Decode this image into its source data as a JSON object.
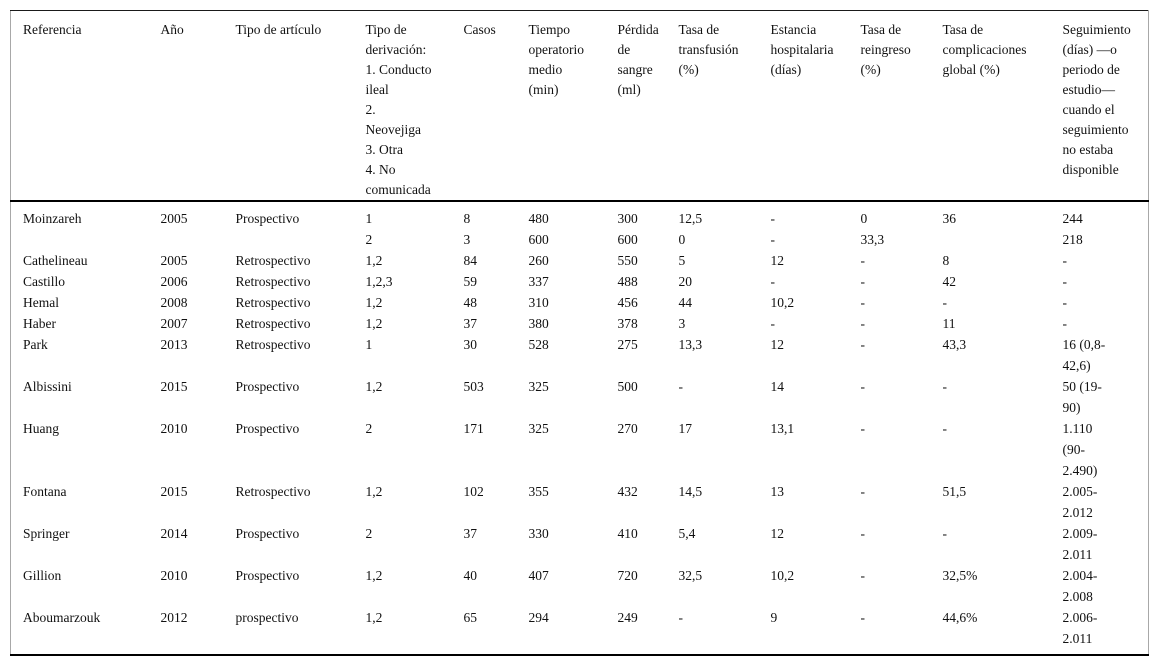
{
  "table": {
    "headers": [
      "Referencia",
      "Año",
      "Tipo de artículo",
      "Tipo de\nderivación:\n1. Conducto\nileal\n2.\nNeovejiga\n3. Otra\n4. No\ncomunicada",
      "Casos",
      "Tiempo\noperatorio\nmedio\n(min)",
      "Pérdida\nde\nsangre\n(ml)",
      "Tasa de\ntransfusión\n(%)",
      "Estancia\nhospitalaria\n(días)",
      "Tasa de\nreingreso\n(%)",
      "Tasa de\ncomplicaciones\nglobal (%)",
      "Seguimiento\n(días) —o\nperiodo de\nestudio—\ncuando el\nseguimiento\nno estaba\ndisponible"
    ],
    "rows": [
      [
        "Moinzareh",
        "2005",
        "Prospectivo",
        "1\n2",
        "8\n3",
        "480\n600",
        "300\n600",
        "12,5\n0",
        "-\n-",
        "0\n33,3",
        "36",
        "244\n218"
      ],
      [
        "Cathelineau",
        "2005",
        "Retrospectivo",
        "1,2",
        "84",
        "260",
        "550",
        "5",
        "12",
        "-",
        "8",
        "-"
      ],
      [
        "Castillo",
        "2006",
        "Retrospectivo",
        "1,2,3",
        "59",
        "337",
        "488",
        "20",
        "-",
        "-",
        "42",
        "-"
      ],
      [
        "Hemal",
        "2008",
        "Retrospectivo",
        "1,2",
        "48",
        "310",
        "456",
        "44",
        "10,2",
        "-",
        "-",
        "-"
      ],
      [
        "Haber",
        "2007",
        "Retrospectivo",
        "1,2",
        "37",
        "380",
        "378",
        "3",
        "-",
        "-",
        "11",
        "-"
      ],
      [
        "Park",
        "2013",
        "Retrospectivo",
        "1",
        "30",
        "528",
        "275",
        "13,3",
        "12",
        "-",
        "43,3",
        "16 (0,8-\n42,6)"
      ],
      [
        "Albissini",
        "2015",
        "Prospectivo",
        "1,2",
        "503",
        "325",
        "500",
        "-",
        "14",
        "-",
        "-",
        "50 (19-\n90)"
      ],
      [
        "Huang",
        "2010",
        "Prospectivo",
        "2",
        "171",
        "325",
        "270",
        "17",
        "13,1",
        "-",
        "-",
        "1.110\n(90-\n2.490)"
      ],
      [
        "Fontana",
        "2015",
        "Retrospectivo",
        "1,2",
        "102",
        "355",
        "432",
        "14,5",
        "13",
        "-",
        "51,5",
        "2.005-\n2.012"
      ],
      [
        "Springer",
        "2014",
        "Prospectivo",
        "2",
        "37",
        "330",
        "410",
        "5,4",
        "12",
        "-",
        "-",
        "2.009-\n2.011"
      ],
      [
        "Gillion",
        "2010",
        "Prospectivo",
        "1,2",
        "40",
        "407",
        "720",
        "32,5",
        "10,2",
        "-",
        "32,5%",
        "2.004-\n2.008"
      ],
      [
        "Aboumarzouk",
        "2012",
        "prospectivo",
        "1,2",
        "65",
        "294",
        "249",
        "-",
        "9",
        "-",
        "44,6%",
        "2.006-\n2.011"
      ]
    ]
  },
  "colors": {
    "background": "#ffffff",
    "text": "#111111",
    "heavy_rule": "#000000",
    "light_border": "#a8a8a8"
  }
}
